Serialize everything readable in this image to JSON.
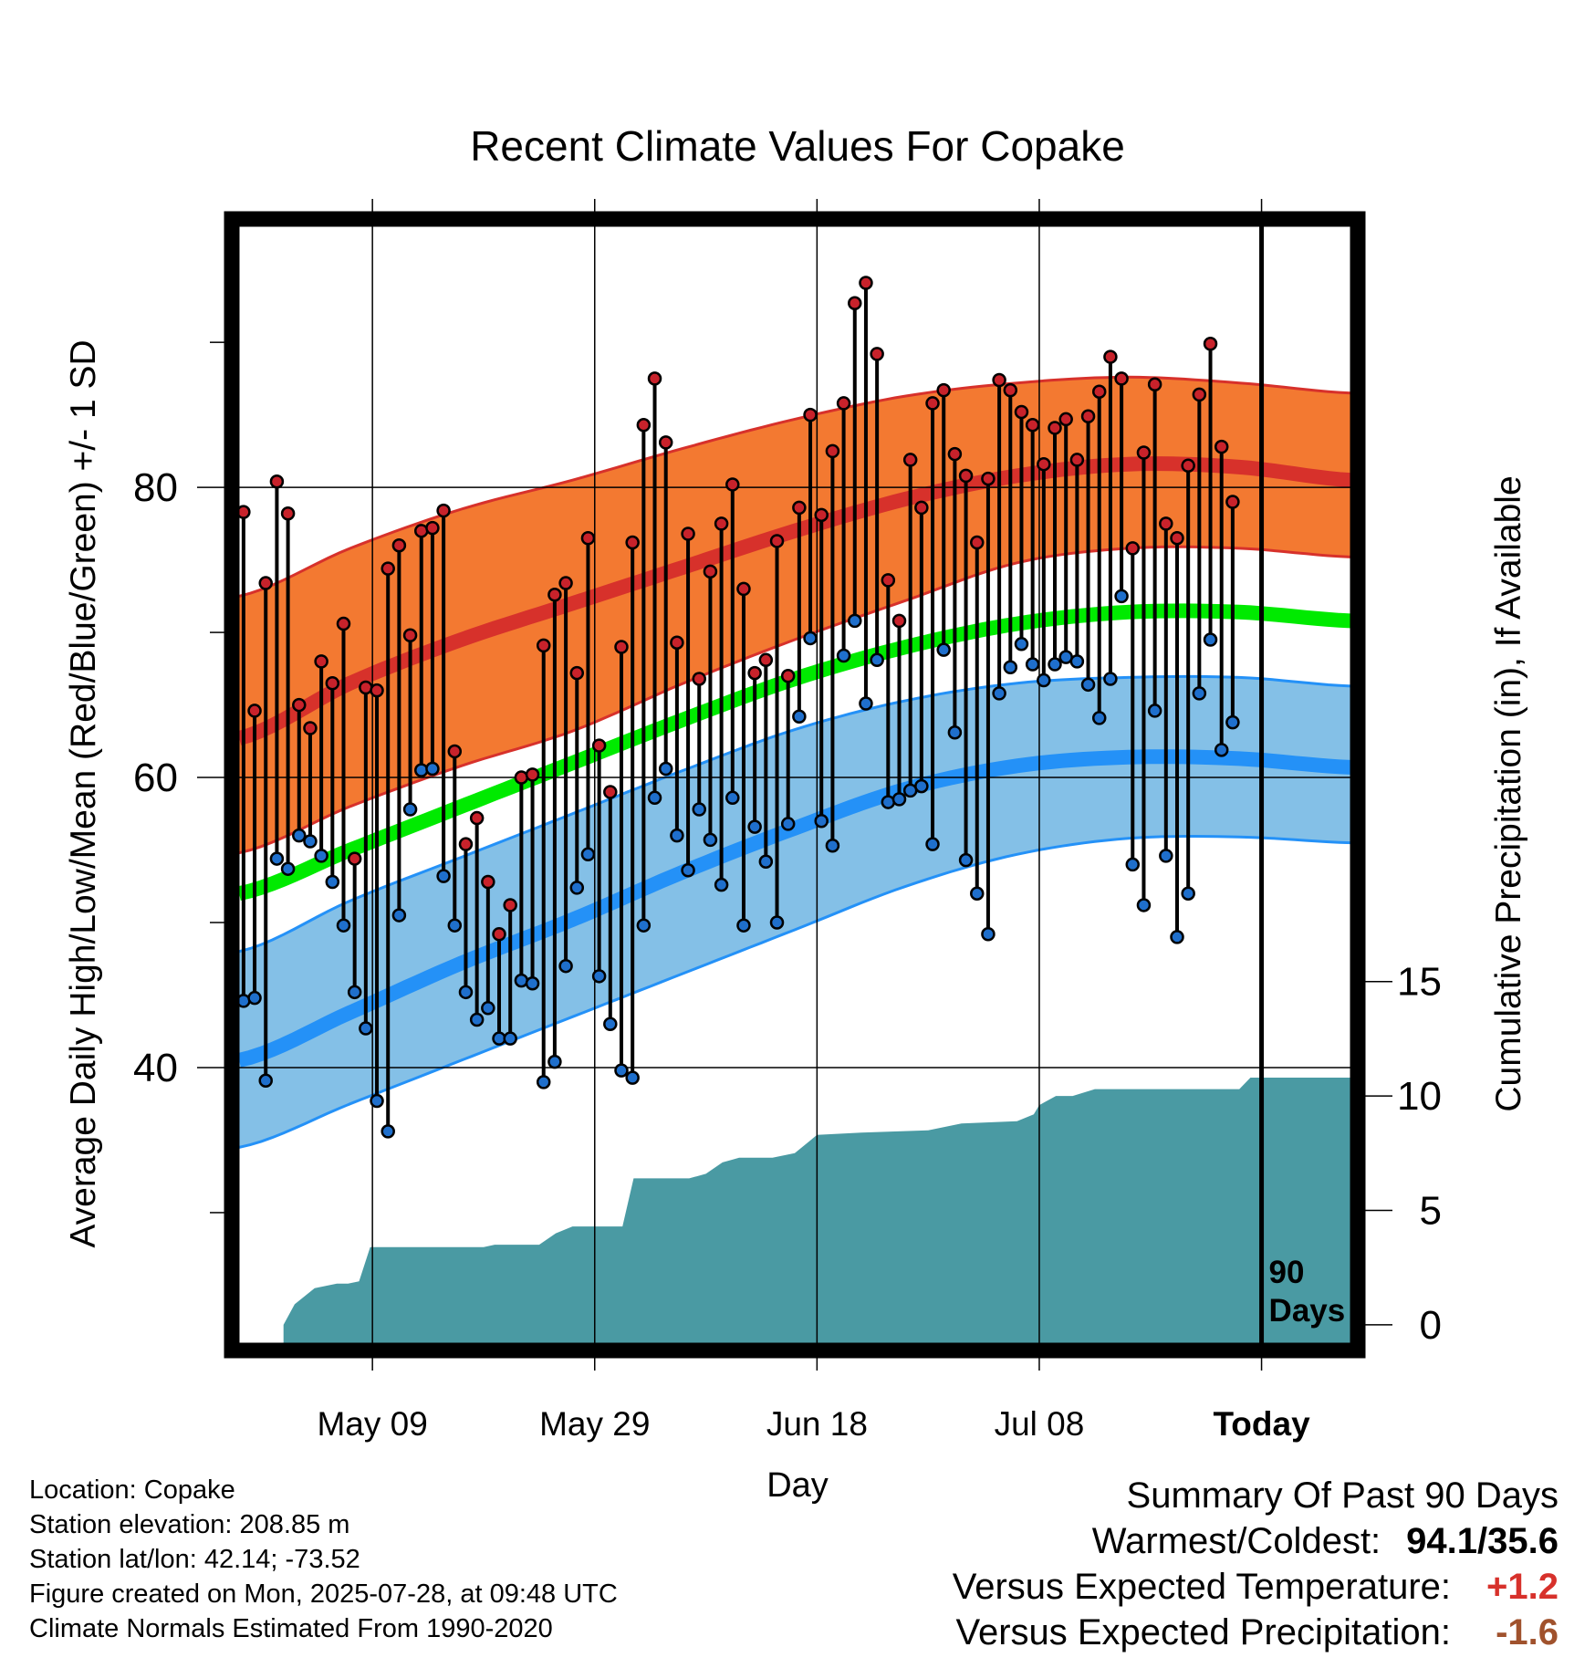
{
  "chart_data": {
    "type": "line",
    "title": "Recent Climate Values For Copake",
    "xlabel": "Day",
    "ylabel": "Average Daily High/Low/Mean (Red/Blue/Green) +/- 1 SD",
    "y2label": "Cumulative Precipitation (in), If Available",
    "x_tick_labels": [
      "May 09",
      "May 29",
      "Jun 18",
      "Jul 08",
      "Today"
    ],
    "x_tick_days": [
      12,
      32,
      52,
      72,
      92
    ],
    "x_range_days": [
      0,
      100
    ],
    "ylim": [
      21,
      98
    ],
    "y_ticks": [
      40,
      60,
      80
    ],
    "y2lim": [
      -0.8,
      48
    ],
    "y2_ticks": [
      0,
      5,
      10,
      15
    ],
    "today_marker_label": [
      "90",
      "Days"
    ],
    "normals": {
      "days": [
        0,
        10,
        20,
        30,
        40,
        50,
        60,
        70,
        80,
        90,
        100
      ],
      "high_mean": [
        62.7,
        66.5,
        69.5,
        72.0,
        74.5,
        77.0,
        79.2,
        80.8,
        81.6,
        81.4,
        80.5
      ],
      "high_upper": [
        72.5,
        75.8,
        78.5,
        80.5,
        82.7,
        84.7,
        86.3,
        87.2,
        87.6,
        87.2,
        86.5
      ],
      "high_lower": [
        54.8,
        58.0,
        60.8,
        63.2,
        66.5,
        69.5,
        72.2,
        74.8,
        75.8,
        75.8,
        75.2
      ],
      "mean": [
        52.0,
        55.0,
        58.0,
        61.0,
        64.0,
        66.8,
        69.0,
        70.6,
        71.4,
        71.4,
        70.8
      ],
      "low_mean": [
        40.5,
        43.8,
        47.2,
        50.2,
        53.5,
        56.5,
        59.2,
        60.8,
        61.4,
        61.3,
        60.7
      ],
      "low_upper": [
        48.0,
        51.5,
        54.5,
        57.5,
        60.5,
        63.3,
        65.3,
        66.5,
        66.9,
        66.9,
        66.3
      ],
      "low_lower": [
        34.5,
        37.5,
        40.5,
        43.5,
        46.5,
        49.5,
        52.5,
        54.7,
        55.8,
        55.9,
        55.5
      ]
    },
    "series": [
      {
        "name": "High",
        "values": [
          78.3,
          64.6,
          73.4,
          80.4,
          78.2,
          65.0,
          63.4,
          68.0,
          66.5,
          70.6,
          54.4,
          66.2,
          66.0,
          74.4,
          76.0,
          69.8,
          77.0,
          77.2,
          78.4,
          61.8,
          55.4,
          57.2,
          52.8,
          49.2,
          51.2,
          60.0,
          60.2,
          69.1,
          72.6,
          73.4,
          67.2,
          76.5,
          62.2,
          59.0,
          69.0,
          76.2,
          84.3,
          87.5,
          83.1,
          69.3,
          76.8,
          66.8,
          74.2,
          77.5,
          80.2,
          73.0,
          67.2,
          68.1,
          76.3,
          67.0,
          78.6,
          85.0,
          78.1,
          82.5,
          85.8,
          92.7,
          94.1,
          89.2,
          73.6,
          70.8,
          81.9,
          78.6,
          85.8,
          86.7,
          82.3,
          80.8,
          76.2,
          80.6,
          87.4,
          86.7,
          85.2,
          84.3,
          81.6,
          84.1,
          84.7,
          81.9,
          84.9,
          86.6,
          89.0,
          87.5,
          75.8,
          82.4,
          87.1,
          77.5,
          76.5,
          81.5,
          86.4,
          89.9,
          82.8,
          79.0
        ]
      },
      {
        "name": "Low",
        "values": [
          44.6,
          44.8,
          39.1,
          54.4,
          53.7,
          56.0,
          55.6,
          54.6,
          52.8,
          49.8,
          45.2,
          42.7,
          37.7,
          35.6,
          50.5,
          57.8,
          60.5,
          60.6,
          53.2,
          49.8,
          45.2,
          43.3,
          44.1,
          42.0,
          42.0,
          46.0,
          45.8,
          39.0,
          40.4,
          47.0,
          52.4,
          54.7,
          46.3,
          43.0,
          39.8,
          39.3,
          49.8,
          58.6,
          60.6,
          56.0,
          53.6,
          57.8,
          55.7,
          52.6,
          58.6,
          49.8,
          56.6,
          54.2,
          50.0,
          56.8,
          64.2,
          69.6,
          57.0,
          55.3,
          68.4,
          70.8,
          65.1,
          68.1,
          58.3,
          58.5,
          59.1,
          59.4,
          55.4,
          68.8,
          63.1,
          54.3,
          52.0,
          49.2,
          65.8,
          67.6,
          69.2,
          67.8,
          66.7,
          67.8,
          68.3,
          68.0,
          66.4,
          64.1,
          66.8,
          72.5,
          54.0,
          51.2,
          64.6,
          54.6,
          49.0,
          52.0,
          65.8,
          69.5,
          61.9,
          63.8
        ]
      }
    ],
    "precip": {
      "days": [
        4,
        5,
        6.8,
        8.8,
        9.8,
        10.8,
        11.8,
        12.8,
        15,
        22,
        23,
        27,
        28.5,
        30,
        31.5,
        33,
        34.5,
        35.5,
        40.5,
        42,
        43.5,
        45,
        48,
        50,
        52,
        56,
        62,
        65,
        70,
        71.5,
        72,
        73.5,
        75,
        77,
        79,
        81,
        90,
        91,
        100
      ],
      "cumulative": [
        0,
        0.9,
        1.6,
        1.8,
        1.8,
        1.9,
        3.4,
        3.4,
        3.4,
        3.4,
        3.5,
        3.5,
        4.0,
        4.3,
        4.3,
        4.3,
        4.3,
        6.4,
        6.4,
        6.6,
        7.1,
        7.3,
        7.3,
        7.5,
        8.3,
        8.4,
        8.5,
        8.8,
        8.9,
        9.2,
        9.6,
        10.0,
        10.0,
        10.3,
        10.3,
        10.3,
        10.3,
        10.8,
        10.8
      ]
    },
    "colors": {
      "high_band": "#f37931",
      "high_line": "#d7312b",
      "high_edge": "#d7312b",
      "mean_line": "#00ea00",
      "low_band": "#84c0e7",
      "low_line": "#2491f7",
      "low_edge": "#2491f7",
      "precip_fill": "#4a9aa3",
      "high_dot": "#c8222b",
      "low_dot": "#1f6fcc"
    }
  },
  "info": {
    "location": "Location: Copake",
    "elevation": "Station elevation: 208.85 m",
    "latlon": "Station lat/lon: 42.14; -73.52",
    "created": "Figure created on Mon, 2025-07-28, at 09:48 UTC",
    "normals": "Climate Normals Estimated From 1990-2020"
  },
  "summary": {
    "title": "Summary Of Past 90 Days",
    "warm_cold_label": "Warmest/Coldest:",
    "warm_cold_value": "94.1/35.6",
    "temp_label": "Versus Expected Temperature:",
    "temp_value": "+1.2",
    "temp_color": "#d7312b",
    "precip_label": "Versus Expected Precipitation:",
    "precip_value": "-1.6",
    "precip_color": "#a0522d"
  }
}
